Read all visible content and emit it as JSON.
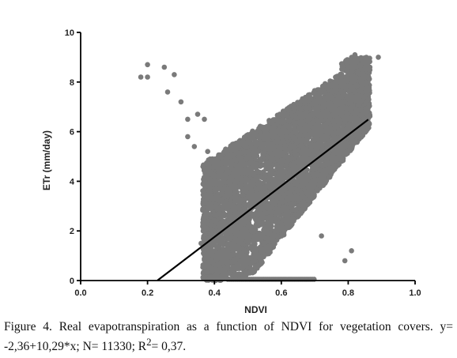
{
  "caption": {
    "line1": "Figure 4. Real evapotranspiration as a function of NDVI for vegetation",
    "line2_prefix": "covers. y= -2,36+10,29*x; N= 11330; R",
    "line2_sup": "2",
    "line2_suffix": "= 0,37."
  },
  "colors": {
    "points": "#7a7a7a",
    "line": "#000000",
    "axis": "#000000"
  },
  "chart_data": {
    "type": "scatter",
    "xlabel": "NDVI",
    "ylabel": "ETr (mm/day)",
    "xlim": [
      0.0,
      1.0
    ],
    "ylim": [
      0,
      10
    ],
    "x_ticks": [
      "0.0",
      "0.2",
      "0.4",
      "0.6",
      "0.8",
      "1.0"
    ],
    "y_ticks": [
      "0",
      "2",
      "4",
      "6",
      "8",
      "10"
    ],
    "grid": false,
    "regression": {
      "intercept": -2.36,
      "slope": 10.29,
      "x_start": 0.23,
      "x_end": 0.86,
      "n": 11330,
      "r2": 0.37
    },
    "outliers": [
      [
        0.18,
        8.2
      ],
      [
        0.2,
        8.2
      ],
      [
        0.2,
        8.7
      ],
      [
        0.25,
        8.6
      ],
      [
        0.26,
        7.6
      ],
      [
        0.28,
        8.3
      ],
      [
        0.3,
        7.2
      ],
      [
        0.32,
        6.5
      ],
      [
        0.35,
        6.7
      ],
      [
        0.37,
        6.5
      ],
      [
        0.32,
        5.8
      ],
      [
        0.34,
        5.4
      ],
      [
        0.38,
        5.2
      ],
      [
        0.36,
        1.5
      ],
      [
        0.37,
        1.2
      ],
      [
        0.38,
        0.9
      ],
      [
        0.47,
        0.5
      ],
      [
        0.5,
        0.7
      ],
      [
        0.79,
        0.8
      ],
      [
        0.81,
        1.2
      ],
      [
        0.72,
        1.8
      ],
      [
        0.89,
        9.0
      ],
      [
        0.82,
        9.1
      ],
      [
        0.86,
        8.9
      ]
    ]
  }
}
